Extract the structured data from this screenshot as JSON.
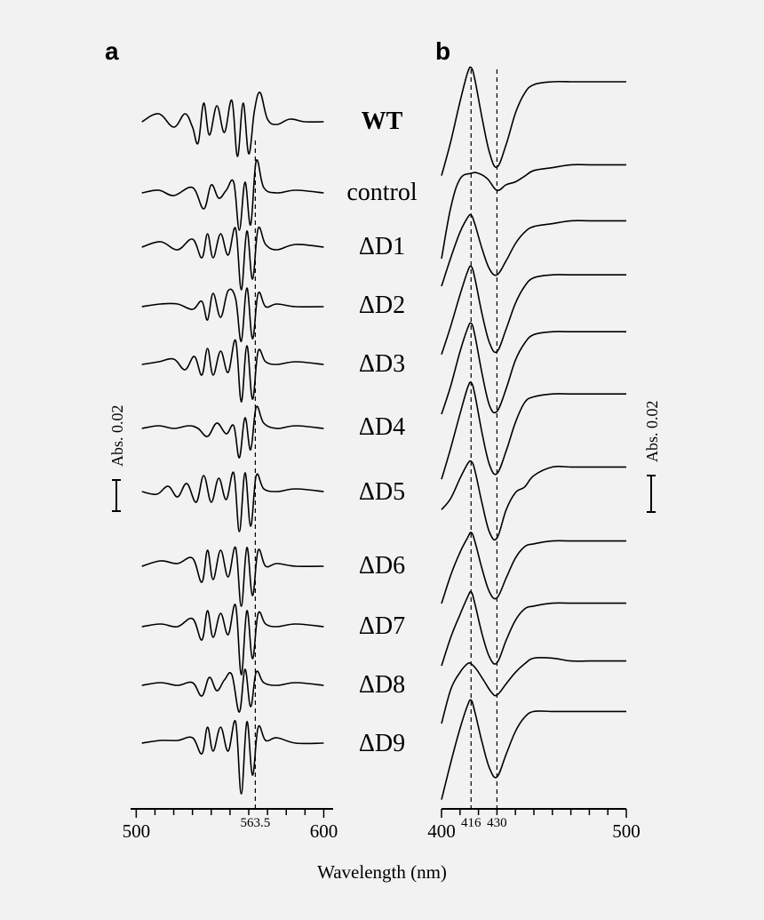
{
  "figure": {
    "x_axis_label": "Wavelength (nm)",
    "scale_bar_label": "Abs. 0.02"
  },
  "chart_data": [
    {
      "panel": "a",
      "type": "line",
      "xlabel": "Wavelength (nm)",
      "xlim": [
        497,
        605
      ],
      "x_ticks": [
        500,
        600
      ],
      "x_tick_labels": [
        "500",
        "600"
      ],
      "marked_wavelength": 563.5,
      "marked_label": "563.5",
      "scale_bar": "Abs. 0.02",
      "series": [
        {
          "name": "WT",
          "x": [
            503,
            512,
            520,
            526,
            530,
            533,
            536,
            539,
            543,
            547,
            551,
            554,
            557,
            560,
            563,
            566,
            570,
            575,
            582,
            590,
            600
          ],
          "y": [
            0,
            0.003,
            -0.002,
            0.003,
            -0.002,
            -0.008,
            0.007,
            -0.005,
            0.006,
            -0.004,
            0.008,
            -0.013,
            0.007,
            -0.012,
            0.004,
            0.011,
            0.001,
            -0.001,
            0.001,
            0,
            0
          ]
        },
        {
          "name": "control",
          "x": [
            503,
            512,
            520,
            530,
            536,
            540,
            544,
            548,
            552,
            555,
            558,
            561,
            564,
            568,
            575,
            585,
            600
          ],
          "y": [
            0,
            0.001,
            -0.001,
            0.002,
            -0.006,
            0.003,
            -0.002,
            0.001,
            0.004,
            -0.014,
            0.004,
            -0.012,
            0.012,
            0.002,
            0,
            0.001,
            0
          ]
        },
        {
          "name": "ΔD1",
          "x": [
            503,
            513,
            522,
            530,
            535,
            538,
            541,
            545,
            549,
            553,
            556,
            559,
            562,
            565,
            569,
            575,
            585,
            600
          ],
          "y": [
            0,
            0.002,
            -0.001,
            0.003,
            -0.004,
            0.005,
            -0.004,
            0.005,
            -0.003,
            0.007,
            -0.016,
            0.006,
            -0.012,
            0.007,
            0.001,
            -0.001,
            0.001,
            0
          ]
        },
        {
          "name": "ΔD2",
          "x": [
            503,
            513,
            522,
            530,
            535,
            538,
            541,
            545,
            549,
            553,
            556,
            559,
            562,
            565,
            569,
            575,
            585,
            600
          ],
          "y": [
            0,
            0.001,
            0.001,
            -0.001,
            0.002,
            -0.005,
            0.005,
            -0.004,
            0.006,
            0.003,
            -0.013,
            0.007,
            -0.012,
            0.005,
            0,
            0.001,
            0,
            0
          ]
        },
        {
          "name": "ΔD3",
          "x": [
            503,
            512,
            520,
            526,
            531,
            535,
            538,
            541,
            545,
            549,
            553,
            556,
            559,
            562,
            565,
            569,
            575,
            585,
            600
          ],
          "y": [
            0,
            0.001,
            0.002,
            -0.002,
            0.003,
            -0.004,
            0.006,
            -0.004,
            0.005,
            -0.003,
            0.009,
            -0.014,
            0.007,
            -0.013,
            0.005,
            0.001,
            0,
            0.001,
            0
          ]
        },
        {
          "name": "ΔD4",
          "x": [
            503,
            512,
            520,
            528,
            533,
            538,
            543,
            548,
            552,
            555,
            558,
            561,
            564,
            568,
            575,
            585,
            600
          ],
          "y": [
            0,
            0.001,
            0,
            0.001,
            0,
            -0.003,
            0.002,
            -0.002,
            0.001,
            -0.011,
            0.004,
            -0.008,
            0.008,
            0.002,
            0,
            0.001,
            0
          ]
        },
        {
          "name": "ΔD5",
          "x": [
            503,
            511,
            517,
            522,
            527,
            532,
            536,
            540,
            544,
            548,
            552,
            555,
            558,
            561,
            564,
            568,
            575,
            585,
            600
          ],
          "y": [
            0,
            -0.001,
            0.002,
            -0.002,
            0.003,
            -0.004,
            0.006,
            -0.004,
            0.005,
            -0.003,
            0.007,
            -0.015,
            0.007,
            -0.013,
            0.006,
            0.001,
            0,
            0.001,
            0
          ]
        },
        {
          "name": "ΔD6",
          "x": [
            503,
            513,
            522,
            530,
            535,
            538,
            541,
            545,
            549,
            553,
            556,
            559,
            562,
            565,
            569,
            575,
            585,
            600
          ],
          "y": [
            0,
            0.002,
            0.001,
            0.003,
            -0.006,
            0.006,
            -0.005,
            0.006,
            -0.004,
            0.007,
            -0.015,
            0.007,
            -0.011,
            0.006,
            0,
            0.001,
            0,
            0
          ]
        },
        {
          "name": "ΔD7",
          "x": [
            503,
            513,
            522,
            530,
            535,
            538,
            541,
            545,
            549,
            553,
            556,
            559,
            562,
            565,
            569,
            575,
            585,
            600
          ],
          "y": [
            0,
            0.001,
            0,
            0.003,
            -0.005,
            0.006,
            -0.004,
            0.005,
            -0.003,
            0.008,
            -0.018,
            0.006,
            -0.012,
            0.005,
            0.001,
            0,
            0.001,
            0
          ]
        },
        {
          "name": "ΔD8",
          "x": [
            503,
            513,
            522,
            530,
            535,
            539,
            543,
            547,
            551,
            555,
            558,
            561,
            564,
            568,
            575,
            585,
            600
          ],
          "y": [
            0,
            0.001,
            0,
            0.001,
            -0.004,
            0.003,
            -0.002,
            0.002,
            0.004,
            -0.01,
            0.006,
            -0.008,
            0.005,
            0.001,
            0,
            0.001,
            0
          ]
        },
        {
          "name": "ΔD9",
          "x": [
            503,
            513,
            522,
            530,
            535,
            538,
            541,
            545,
            549,
            553,
            556,
            559,
            562,
            565,
            569,
            575,
            585,
            600
          ],
          "y": [
            0,
            0.001,
            0.001,
            0.002,
            -0.004,
            0.006,
            -0.003,
            0.006,
            -0.003,
            0.008,
            -0.019,
            0.008,
            -0.012,
            0.006,
            0.001,
            0.002,
            0,
            0
          ]
        }
      ]
    },
    {
      "panel": "b",
      "type": "line",
      "xlabel": "Wavelength (nm)",
      "xlim": [
        400,
        500
      ],
      "x_ticks": [
        400,
        416,
        430,
        500
      ],
      "x_tick_labels": [
        "400",
        "416",
        "430",
        "500"
      ],
      "marked_wavelengths": [
        416,
        430
      ],
      "scale_bar": "Abs. 0.02",
      "series": [
        {
          "name": "WT",
          "x": [
            400,
            405,
            410,
            414,
            416,
            418,
            422,
            426,
            430,
            435,
            440,
            445,
            450,
            460,
            470,
            480,
            500
          ],
          "y": [
            -0.028,
            -0.016,
            -0.002,
            0.008,
            0.01,
            0.006,
            -0.008,
            -0.02,
            -0.025,
            -0.017,
            -0.006,
            0.001,
            0.004,
            0.005,
            0.005,
            0.005,
            0.005
          ]
        },
        {
          "name": "control",
          "x": [
            400,
            405,
            410,
            416,
            420,
            425,
            430,
            435,
            440,
            445,
            450,
            460,
            470,
            480,
            500
          ],
          "y": [
            -0.03,
            -0.012,
            -0.002,
            0,
            0,
            -0.002,
            -0.006,
            -0.004,
            -0.003,
            -0.001,
            0.001,
            0.002,
            0.003,
            0.003,
            0.003
          ]
        },
        {
          "name": "ΔD1",
          "x": [
            400,
            405,
            410,
            414,
            416,
            418,
            422,
            426,
            430,
            435,
            440,
            445,
            450,
            460,
            470,
            480,
            500
          ],
          "y": [
            -0.02,
            -0.01,
            -0.001,
            0.004,
            0.005,
            0.002,
            -0.007,
            -0.014,
            -0.016,
            -0.011,
            -0.005,
            -0.001,
            0.001,
            0.002,
            0.003,
            0.003,
            0.003
          ]
        },
        {
          "name": "ΔD2",
          "x": [
            400,
            405,
            410,
            414,
            416,
            418,
            422,
            426,
            430,
            435,
            440,
            445,
            450,
            460,
            470,
            480,
            500
          ],
          "y": [
            -0.024,
            -0.014,
            -0.003,
            0.005,
            0.007,
            0.003,
            -0.01,
            -0.02,
            -0.023,
            -0.015,
            -0.006,
            0,
            0.003,
            0.004,
            0.004,
            0.004,
            0.004
          ]
        },
        {
          "name": "ΔD3",
          "x": [
            400,
            405,
            410,
            414,
            416,
            418,
            422,
            426,
            430,
            435,
            440,
            445,
            450,
            460,
            470,
            480,
            500
          ],
          "y": [
            -0.025,
            -0.015,
            -0.003,
            0.005,
            0.007,
            0.003,
            -0.011,
            -0.022,
            -0.024,
            -0.016,
            -0.006,
            0,
            0.003,
            0.004,
            0.004,
            0.004,
            0.004
          ]
        },
        {
          "name": "ΔD4",
          "x": [
            400,
            405,
            410,
            414,
            416,
            418,
            422,
            426,
            430,
            435,
            440,
            445,
            450,
            460,
            470,
            480,
            500
          ],
          "y": [
            -0.026,
            -0.015,
            -0.003,
            0.006,
            0.008,
            0.004,
            -0.01,
            -0.021,
            -0.024,
            -0.016,
            -0.006,
            0.001,
            0.003,
            0.004,
            0.004,
            0.004,
            0.004
          ]
        },
        {
          "name": "ΔD5",
          "x": [
            400,
            405,
            410,
            414,
            416,
            418,
            422,
            426,
            430,
            435,
            440,
            445,
            450,
            460,
            470,
            480,
            500
          ],
          "y": [
            -0.012,
            -0.008,
            -0.001,
            0.004,
            0.005,
            0.002,
            -0.01,
            -0.02,
            -0.022,
            -0.012,
            -0.006,
            -0.004,
            0,
            0.003,
            0.003,
            0.003,
            0.003
          ]
        },
        {
          "name": "ΔD6",
          "x": [
            400,
            405,
            410,
            414,
            416,
            418,
            422,
            426,
            430,
            435,
            440,
            445,
            450,
            460,
            470,
            480,
            500
          ],
          "y": [
            -0.02,
            -0.01,
            -0.002,
            0.003,
            0.005,
            0.002,
            -0.008,
            -0.016,
            -0.018,
            -0.011,
            -0.004,
            0,
            0.001,
            0.002,
            0.002,
            0.002,
            0.002
          ]
        },
        {
          "name": "ΔD7",
          "x": [
            400,
            405,
            410,
            414,
            416,
            418,
            422,
            426,
            430,
            435,
            440,
            445,
            450,
            460,
            470,
            480,
            500
          ],
          "y": [
            -0.02,
            -0.01,
            -0.002,
            0.004,
            0.006,
            0.002,
            -0.009,
            -0.017,
            -0.019,
            -0.011,
            -0.004,
            0,
            0.001,
            0.002,
            0.002,
            0.002,
            0.002
          ]
        },
        {
          "name": "ΔD8",
          "x": [
            400,
            405,
            410,
            414,
            416,
            419,
            423,
            427,
            430,
            435,
            440,
            445,
            450,
            460,
            470,
            480,
            500
          ],
          "y": [
            -0.02,
            -0.008,
            -0.002,
            0.001,
            0.001,
            -0.001,
            -0.005,
            -0.009,
            -0.01,
            -0.006,
            -0.002,
            0.001,
            0.003,
            0.003,
            0.002,
            0.002,
            0.002
          ]
        },
        {
          "name": "ΔD9",
          "x": [
            400,
            405,
            410,
            414,
            416,
            418,
            422,
            426,
            430,
            435,
            440,
            445,
            450,
            460,
            470,
            480,
            500
          ],
          "y": [
            -0.028,
            -0.015,
            -0.003,
            0.005,
            0.007,
            0.003,
            -0.008,
            -0.017,
            -0.02,
            -0.012,
            -0.004,
            0.001,
            0.003,
            0.003,
            0.003,
            0.003,
            0.003
          ]
        }
      ]
    }
  ]
}
